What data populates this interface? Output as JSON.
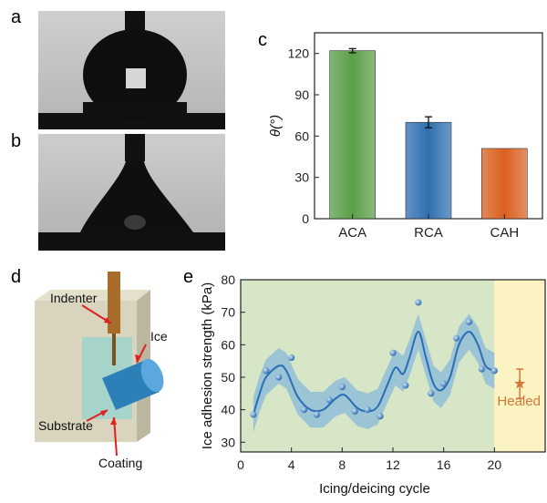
{
  "panels": {
    "a": "a",
    "b": "b",
    "c": "c",
    "d": "d",
    "e": "e"
  },
  "chart_data": [
    {
      "type": "bar",
      "panel": "c",
      "categories": [
        "ACA",
        "RCA",
        "CAH"
      ],
      "values": [
        122,
        70,
        51
      ],
      "errors": [
        1.5,
        4,
        0
      ],
      "colors": [
        "#5a9e47",
        "#2f6fb0",
        "#d9601f"
      ],
      "ylabel": "θ(°)",
      "ylim": [
        0,
        135
      ],
      "yticks": [
        0,
        30,
        60,
        90,
        120
      ]
    },
    {
      "type": "scatter",
      "panel": "e",
      "title": "",
      "xlabel": "Icing/deicing cycle",
      "ylabel": "Ice adhesion strength (kPa)",
      "xlim": [
        0,
        24
      ],
      "ylim": [
        27,
        80
      ],
      "xticks": [
        0,
        4,
        8,
        12,
        16,
        20
      ],
      "yticks": [
        30,
        40,
        50,
        60,
        70,
        80
      ],
      "x": [
        1,
        2,
        3,
        4,
        5,
        6,
        7,
        8,
        9,
        10,
        11,
        12,
        13,
        14,
        15,
        16,
        17,
        18,
        19,
        20
      ],
      "y": [
        38.5,
        52,
        50,
        56,
        40,
        38.5,
        43,
        47,
        39.5,
        40,
        38,
        57.5,
        47.5,
        73,
        45,
        48,
        62,
        67,
        52.5,
        52
      ],
      "fit": [
        [
          1,
          38.5
        ],
        [
          1.5,
          45
        ],
        [
          2,
          50
        ],
        [
          3,
          53.5
        ],
        [
          3.6,
          52
        ],
        [
          4.5,
          44
        ],
        [
          5.5,
          40
        ],
        [
          6.5,
          40
        ],
        [
          7.5,
          43.5
        ],
        [
          8.2,
          44.5
        ],
        [
          9.2,
          40.5
        ],
        [
          10,
          39.5
        ],
        [
          10.8,
          41
        ],
        [
          11.6,
          48
        ],
        [
          12.2,
          53
        ],
        [
          12.8,
          51
        ],
        [
          13.3,
          56
        ],
        [
          14,
          64
        ],
        [
          14.6,
          56
        ],
        [
          15.2,
          48
        ],
        [
          15.8,
          46
        ],
        [
          16.5,
          50
        ],
        [
          17.2,
          60
        ],
        [
          18,
          64
        ],
        [
          18.7,
          60
        ],
        [
          19.3,
          53.5
        ],
        [
          20,
          52
        ]
      ],
      "band_width": 5.5,
      "healed": {
        "x": 22,
        "y": 48,
        "error": 4.5,
        "label": "Healed"
      },
      "regions": {
        "cycles_color": "#d8e6c8",
        "healed_color": "#fbf3c2",
        "boundary_x": 20
      }
    }
  ],
  "diagram_d": {
    "labels": {
      "indenter": "Indenter",
      "ice": "Ice",
      "substrate": "Substrate",
      "coating": "Coating"
    }
  }
}
